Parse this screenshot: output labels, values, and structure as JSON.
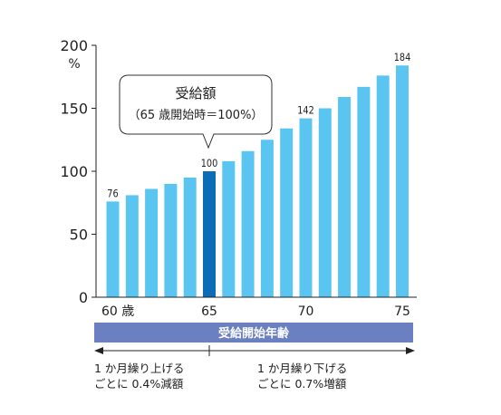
{
  "chart_data": {
    "type": "bar",
    "ylabel": "%",
    "ylim": [
      0,
      200
    ],
    "yticks": [
      0,
      50,
      100,
      150,
      200
    ],
    "categories": [
      "60",
      "61",
      "62",
      "63",
      "64",
      "65",
      "66",
      "67",
      "68",
      "69",
      "70",
      "71",
      "72",
      "73",
      "74",
      "75"
    ],
    "values": [
      76,
      81,
      86,
      90,
      95,
      100,
      108,
      116,
      125,
      134,
      142,
      150,
      159,
      167,
      176,
      184
    ],
    "xtick_labels": [
      {
        "category": "60",
        "text": "60 歳"
      },
      {
        "category": "65",
        "text": "65"
      },
      {
        "category": "70",
        "text": "70"
      },
      {
        "category": "75",
        "text": "75"
      }
    ],
    "data_labels": [
      {
        "category": "60",
        "text": "76"
      },
      {
        "category": "65",
        "text": "100"
      },
      {
        "category": "70",
        "text": "142"
      },
      {
        "category": "75",
        "text": "184"
      }
    ],
    "highlight_category": "65",
    "colors": {
      "bar": "#5bc5f2",
      "highlight": "#0c6cb5",
      "axis_band": "#6a80c0"
    }
  },
  "callout": {
    "title": "受給額",
    "subtitle": "（65 歳開始時＝100%）"
  },
  "axis_band_label": "受給開始年齢",
  "notes": {
    "left_line1": "1 か月繰り上げる",
    "left_line2": "ごとに 0.4%減額",
    "right_line1": "1 か月繰り下げる",
    "right_line2": "ごとに 0.7%増額"
  }
}
